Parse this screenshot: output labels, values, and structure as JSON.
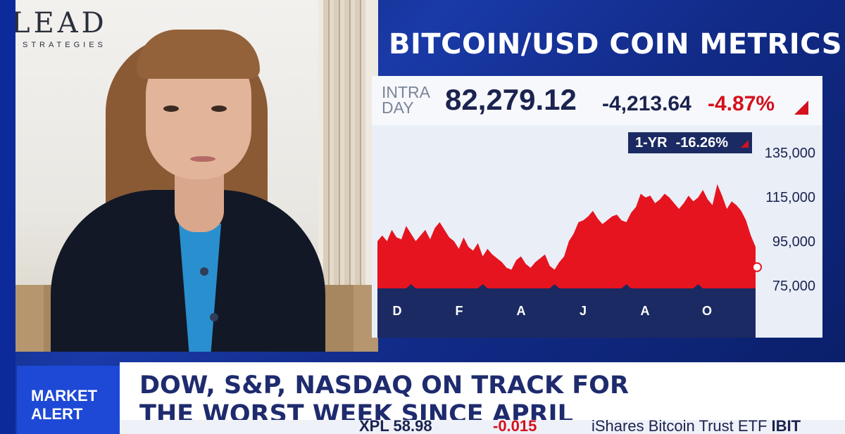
{
  "video": {
    "logo_main": "LEAD",
    "logo_sub": "STRATEGIES"
  },
  "header": {
    "title": "BITCOIN/USD COIN METRICS"
  },
  "quote": {
    "intra_line1": "INTRA",
    "intra_line2": "DAY",
    "price": "82,279.12",
    "change": "-4,213.64",
    "change_pct": "-4.87%",
    "one_year_label": "1-YR",
    "one_year_pct": "-16.26%",
    "down_color": "#d4111d"
  },
  "chart_data": {
    "type": "area",
    "x_tick_labels": [
      "D",
      "F",
      "A",
      "J",
      "A",
      "O"
    ],
    "y_tick_labels": [
      "135,000",
      "115,000",
      "95,000",
      "75,000"
    ],
    "ylim": [
      70000,
      140000
    ],
    "series": [
      {
        "values": [
          93000,
          96000,
          93000,
          99000,
          95000,
          94000,
          101000,
          97000,
          93000,
          96000,
          99000,
          94000,
          100000,
          103000,
          99000,
          95000,
          93000,
          89000,
          95000,
          90000,
          88000,
          92000,
          85000,
          89000,
          86000,
          84000,
          82000,
          79000,
          78000,
          83000,
          85000,
          81000,
          79000,
          82000,
          84000,
          86000,
          80000,
          78000,
          82000,
          85000,
          93000,
          97000,
          103000,
          104000,
          106000,
          109000,
          105000,
          102000,
          104000,
          106000,
          107000,
          104000,
          103000,
          108000,
          111000,
          118000,
          116000,
          117000,
          113000,
          115000,
          118000,
          116000,
          113000,
          110000,
          113000,
          117000,
          114000,
          116000,
          120000,
          115000,
          112000,
          123000,
          117000,
          110000,
          114000,
          112000,
          109000,
          104000,
          96000,
          90000
        ]
      }
    ],
    "marker_last_value": 82279.12
  },
  "ticker": {
    "alert_line1": "MARKET",
    "alert_line2": "ALERT",
    "headline_line1": "DOW, S&P, NASDAQ ON TRACK FOR",
    "headline_line2": "THE WORST WEEK SINCE APRIL",
    "stock_symbol_price": "XPL 58.98",
    "stock_change": "-0.015",
    "etf_name": "iShares Bitcoin Trust ETF",
    "etf_symbol": "IBIT"
  }
}
